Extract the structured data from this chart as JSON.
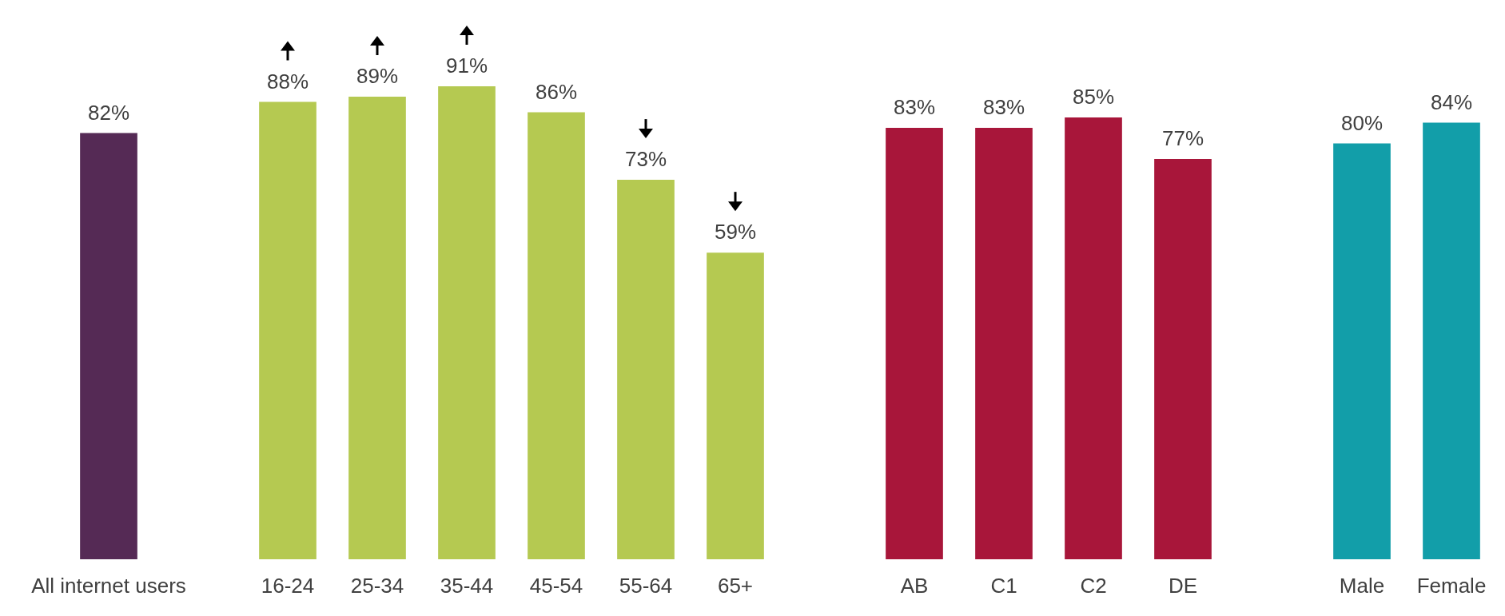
{
  "chart_data": {
    "type": "bar",
    "categories": [
      "All internet users",
      null,
      "16-24",
      "25-34",
      "35-44",
      "45-54",
      "55-64",
      "65+",
      null,
      "AB",
      "C1",
      "C2",
      "DE",
      null,
      "Male",
      "Female"
    ],
    "values": [
      82,
      null,
      88,
      89,
      91,
      86,
      73,
      59,
      null,
      83,
      83,
      85,
      77,
      null,
      80,
      84
    ],
    "value_labels": [
      "82%",
      null,
      "88%",
      "89%",
      "91%",
      "86%",
      "73%",
      "59%",
      null,
      "83%",
      "83%",
      "85%",
      "77%",
      null,
      "80%",
      "84%"
    ],
    "colors": [
      "#552a55",
      null,
      "#b5c951",
      "#b5c951",
      "#b5c951",
      "#b5c951",
      "#b5c951",
      "#b5c951",
      null,
      "#a8163a",
      "#a8163a",
      "#a8163a",
      "#a8163a",
      null,
      "#129ea9",
      "#129ea9"
    ]
  }
}
